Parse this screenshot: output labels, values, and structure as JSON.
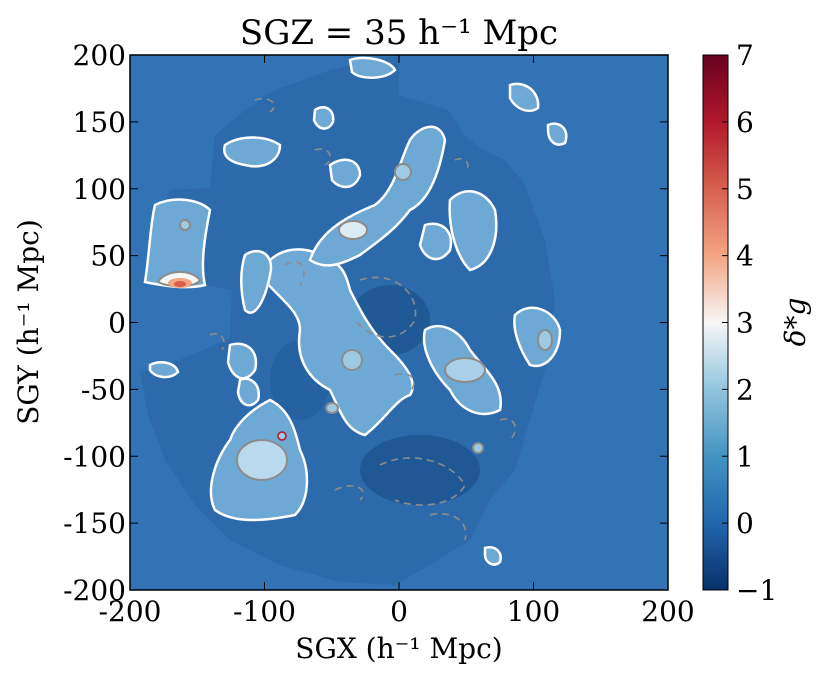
{
  "chart_data": {
    "type": "heatmap",
    "title": "SGZ = 35 h⁻¹ Mpc",
    "xlabel": "SGX (h⁻¹ Mpc)",
    "ylabel": "SGY (h⁻¹ Mpc)",
    "xlim": [
      -200,
      200
    ],
    "ylim": [
      -200,
      200
    ],
    "x_ticks": [
      -200,
      -100,
      0,
      100,
      200
    ],
    "x_tick_labels": [
      "-200",
      "-100",
      "0",
      "100",
      "200"
    ],
    "y_ticks": [
      200,
      150,
      100,
      50,
      0,
      -50,
      -100,
      -150,
      -200
    ],
    "y_tick_labels": [
      "200",
      "150",
      "100",
      "50",
      "0",
      "-50",
      "-100",
      "-150",
      "-200"
    ],
    "colorbar": {
      "label": "δ*g",
      "range": [
        -1,
        7
      ],
      "ticks": [
        7,
        6,
        5,
        4,
        3,
        2,
        1,
        0,
        -1
      ],
      "tick_labels": [
        "7",
        "6",
        "5",
        "4",
        "3",
        "2",
        "1",
        "0",
        "−1"
      ],
      "colors": [
        "#08306b",
        "#2166ac",
        "#4393c3",
        "#92c5de",
        "#f7f7f7",
        "#f4a582",
        "#d6604d",
        "#b2182b",
        "#67001f"
      ]
    },
    "background_value": 0,
    "survey_radius": 200,
    "overdense_regions": [
      {
        "x": -160,
        "y": 30,
        "value": 5.8,
        "label": "peak"
      },
      {
        "x": -40,
        "y": 68,
        "value": 2.5
      },
      {
        "x": -100,
        "y": -95,
        "value": 2.2
      },
      {
        "x": 45,
        "y": -35,
        "value": 2.0
      },
      {
        "x": 5,
        "y": 110,
        "value": 1.5
      },
      {
        "x": -35,
        "y": -28,
        "value": 1.5
      },
      {
        "x": 110,
        "y": -15,
        "value": 1.6
      },
      {
        "x": -175,
        "y": 70,
        "value": 1.3
      },
      {
        "x": -55,
        "y": -65,
        "value": 1.3
      },
      {
        "x": -100,
        "y": 30,
        "value": 1.1
      },
      {
        "x": -125,
        "y": 130,
        "value": 0.9
      },
      {
        "x": 65,
        "y": 80,
        "value": 0.9
      },
      {
        "x": 60,
        "y": -95,
        "value": 1.0
      }
    ],
    "contours": {
      "white": "δ*g = 1",
      "gray_solid": "δ*g = 2",
      "gray_dashed": "δ*g = -0.5"
    }
  }
}
